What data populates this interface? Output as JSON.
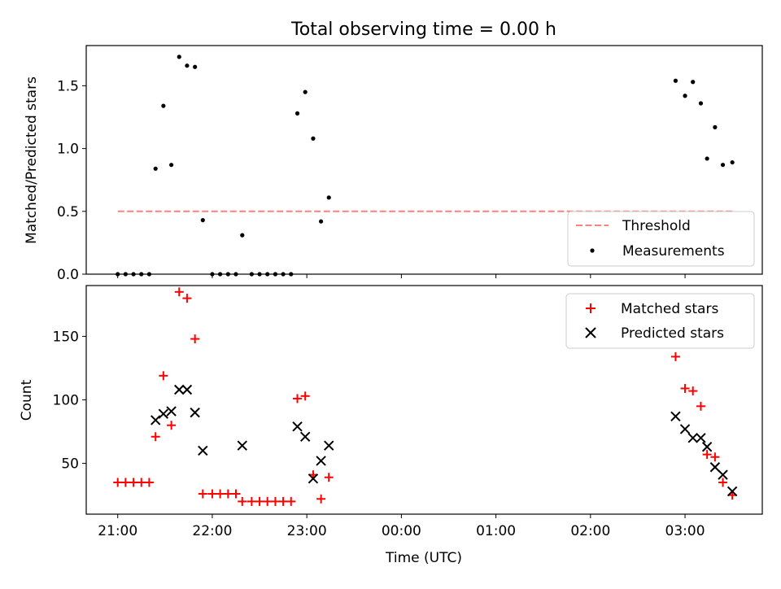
{
  "chart_data": [
    {
      "type": "scatter",
      "title": "Total observing time = 0.00 h",
      "xlabel": "",
      "ylabel": "Matched/Predicted stars",
      "ylim": [
        0,
        1.82
      ],
      "yticks": [
        {
          "value": 0.0,
          "label": "0.0"
        },
        {
          "value": 0.5,
          "label": "0.5"
        },
        {
          "value": 1.0,
          "label": "1.0"
        },
        {
          "value": 1.5,
          "label": "1.5"
        }
      ],
      "legend_position": "lower-right",
      "threshold": {
        "name": "Threshold",
        "value": 0.5,
        "x_start": 21.0,
        "x_end": 27.5,
        "color": "#ff8080"
      },
      "series": [
        {
          "name": "Measurements",
          "marker": "dot",
          "color": "#000000",
          "points": [
            {
              "x": 21.0,
              "y": 0.0
            },
            {
              "x": 21.083,
              "y": 0.0
            },
            {
              "x": 21.167,
              "y": 0.0
            },
            {
              "x": 21.25,
              "y": 0.0
            },
            {
              "x": 21.333,
              "y": 0.0
            },
            {
              "x": 21.4,
              "y": 0.84
            },
            {
              "x": 21.483,
              "y": 1.34
            },
            {
              "x": 21.567,
              "y": 0.87
            },
            {
              "x": 21.65,
              "y": 1.73
            },
            {
              "x": 21.733,
              "y": 1.66
            },
            {
              "x": 21.817,
              "y": 1.65
            },
            {
              "x": 21.9,
              "y": 0.43
            },
            {
              "x": 22.0,
              "y": 0.0
            },
            {
              "x": 22.083,
              "y": 0.0
            },
            {
              "x": 22.167,
              "y": 0.0
            },
            {
              "x": 22.25,
              "y": 0.0
            },
            {
              "x": 22.317,
              "y": 0.31
            },
            {
              "x": 22.417,
              "y": 0.0
            },
            {
              "x": 22.5,
              "y": 0.0
            },
            {
              "x": 22.583,
              "y": 0.0
            },
            {
              "x": 22.667,
              "y": 0.0
            },
            {
              "x": 22.75,
              "y": 0.0
            },
            {
              "x": 22.833,
              "y": 0.0
            },
            {
              "x": 22.9,
              "y": 1.28
            },
            {
              "x": 22.983,
              "y": 1.45
            },
            {
              "x": 23.067,
              "y": 1.08
            },
            {
              "x": 23.15,
              "y": 0.42
            },
            {
              "x": 23.233,
              "y": 0.61
            },
            {
              "x": 26.9,
              "y": 1.54
            },
            {
              "x": 27.0,
              "y": 1.42
            },
            {
              "x": 27.083,
              "y": 1.53
            },
            {
              "x": 27.167,
              "y": 1.36
            },
            {
              "x": 27.233,
              "y": 0.92
            },
            {
              "x": 27.317,
              "y": 1.17
            },
            {
              "x": 27.4,
              "y": 0.87
            },
            {
              "x": 27.5,
              "y": 0.89
            }
          ]
        }
      ]
    },
    {
      "type": "scatter",
      "title": "",
      "xlabel": "Time (UTC)",
      "ylabel": "Count",
      "ylim": [
        10,
        190
      ],
      "yticks": [
        {
          "value": 50,
          "label": "50"
        },
        {
          "value": 100,
          "label": "100"
        },
        {
          "value": 150,
          "label": "150"
        }
      ],
      "xlim": [
        20.667,
        27.817
      ],
      "xticks": [
        {
          "value": 21,
          "label": "21:00"
        },
        {
          "value": 22,
          "label": "22:00"
        },
        {
          "value": 23,
          "label": "23:00"
        },
        {
          "value": 24,
          "label": "00:00"
        },
        {
          "value": 25,
          "label": "01:00"
        },
        {
          "value": 26,
          "label": "02:00"
        },
        {
          "value": 27,
          "label": "03:00"
        }
      ],
      "legend_position": "upper-right",
      "series": [
        {
          "name": "Matched stars",
          "marker": "plus",
          "color": "#ff0000",
          "points": [
            {
              "x": 21.0,
              "y": 35
            },
            {
              "x": 21.083,
              "y": 35
            },
            {
              "x": 21.167,
              "y": 35
            },
            {
              "x": 21.25,
              "y": 35
            },
            {
              "x": 21.333,
              "y": 35
            },
            {
              "x": 21.4,
              "y": 71
            },
            {
              "x": 21.483,
              "y": 119
            },
            {
              "x": 21.567,
              "y": 80
            },
            {
              "x": 21.65,
              "y": 185
            },
            {
              "x": 21.733,
              "y": 180
            },
            {
              "x": 21.817,
              "y": 148
            },
            {
              "x": 21.9,
              "y": 26
            },
            {
              "x": 22.0,
              "y": 26
            },
            {
              "x": 22.083,
              "y": 26
            },
            {
              "x": 22.167,
              "y": 26
            },
            {
              "x": 22.25,
              "y": 26
            },
            {
              "x": 22.317,
              "y": 20
            },
            {
              "x": 22.417,
              "y": 20
            },
            {
              "x": 22.5,
              "y": 20
            },
            {
              "x": 22.583,
              "y": 20
            },
            {
              "x": 22.667,
              "y": 20
            },
            {
              "x": 22.75,
              "y": 20
            },
            {
              "x": 22.833,
              "y": 20
            },
            {
              "x": 22.9,
              "y": 101
            },
            {
              "x": 22.983,
              "y": 103
            },
            {
              "x": 23.067,
              "y": 41
            },
            {
              "x": 23.15,
              "y": 22
            },
            {
              "x": 23.233,
              "y": 39
            },
            {
              "x": 26.9,
              "y": 134
            },
            {
              "x": 27.0,
              "y": 109
            },
            {
              "x": 27.083,
              "y": 107
            },
            {
              "x": 27.167,
              "y": 95
            },
            {
              "x": 27.233,
              "y": 57
            },
            {
              "x": 27.317,
              "y": 55
            },
            {
              "x": 27.4,
              "y": 35
            },
            {
              "x": 27.5,
              "y": 25
            }
          ]
        },
        {
          "name": "Predicted stars",
          "marker": "x",
          "color": "#000000",
          "points": [
            {
              "x": 21.4,
              "y": 84
            },
            {
              "x": 21.483,
              "y": 89
            },
            {
              "x": 21.567,
              "y": 91
            },
            {
              "x": 21.65,
              "y": 108
            },
            {
              "x": 21.733,
              "y": 108
            },
            {
              "x": 21.817,
              "y": 90
            },
            {
              "x": 21.9,
              "y": 60
            },
            {
              "x": 22.317,
              "y": 64
            },
            {
              "x": 22.9,
              "y": 79
            },
            {
              "x": 22.983,
              "y": 71
            },
            {
              "x": 23.067,
              "y": 38
            },
            {
              "x": 23.15,
              "y": 52
            },
            {
              "x": 23.233,
              "y": 64
            },
            {
              "x": 26.9,
              "y": 87
            },
            {
              "x": 27.0,
              "y": 77
            },
            {
              "x": 27.083,
              "y": 70
            },
            {
              "x": 27.167,
              "y": 70
            },
            {
              "x": 27.233,
              "y": 63
            },
            {
              "x": 27.317,
              "y": 47
            },
            {
              "x": 27.4,
              "y": 41
            },
            {
              "x": 27.5,
              "y": 28
            }
          ]
        }
      ]
    }
  ]
}
